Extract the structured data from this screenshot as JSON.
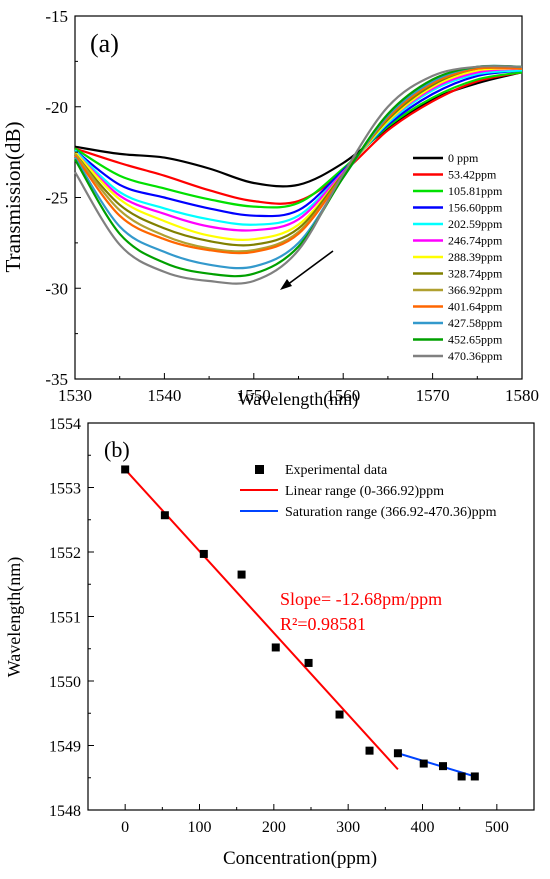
{
  "chart_data": [
    {
      "type": "line",
      "panel_label": "(a)",
      "xlabel": "Wavelength(nm)",
      "ylabel": "Transmission(dB)",
      "xlim": [
        1530,
        1580
      ],
      "ylim": [
        -35,
        -15
      ],
      "xticks": [
        1530,
        1540,
        1550,
        1560,
        1570,
        1580
      ],
      "yticks": [
        -35,
        -30,
        -25,
        -20,
        -15
      ],
      "grid": false,
      "legend_position": "right",
      "annotation": "arrow pointing down-left",
      "series": [
        {
          "name": "0 ppm",
          "color": "#000000",
          "x": [
            1530,
            1535,
            1540,
            1545,
            1550,
            1555,
            1560,
            1565,
            1570,
            1575,
            1580
          ],
          "y": [
            -22.2,
            -22.6,
            -22.8,
            -23.4,
            -24.2,
            -24.3,
            -23.1,
            -21.2,
            -19.6,
            -18.7,
            -18.1
          ]
        },
        {
          "name": "53.42ppm",
          "color": "#ff0000",
          "x": [
            1530,
            1535,
            1540,
            1545,
            1550,
            1555,
            1560,
            1565,
            1570,
            1575,
            1580
          ],
          "y": [
            -22.3,
            -23.1,
            -23.8,
            -24.6,
            -25.2,
            -25.2,
            -23.6,
            -21.3,
            -19.7,
            -18.6,
            -18.1
          ]
        },
        {
          "name": "105.81ppm",
          "color": "#00e000",
          "x": [
            1530,
            1535,
            1540,
            1545,
            1550,
            1555,
            1560,
            1565,
            1570,
            1575,
            1580
          ],
          "y": [
            -22.3,
            -23.8,
            -24.5,
            -25.1,
            -25.5,
            -25.3,
            -23.4,
            -21.1,
            -19.5,
            -18.5,
            -18.1
          ]
        },
        {
          "name": "156.60ppm",
          "color": "#0000ff",
          "x": [
            1530,
            1535,
            1540,
            1545,
            1550,
            1555,
            1560,
            1565,
            1570,
            1575,
            1580
          ],
          "y": [
            -22.4,
            -24.3,
            -25.0,
            -25.6,
            -26.0,
            -25.7,
            -23.5,
            -21.0,
            -19.3,
            -18.3,
            -18.0
          ]
        },
        {
          "name": "202.59ppm",
          "color": "#00ffff",
          "x": [
            1530,
            1535,
            1540,
            1545,
            1550,
            1555,
            1560,
            1565,
            1570,
            1575,
            1580
          ],
          "y": [
            -22.4,
            -24.7,
            -25.6,
            -26.2,
            -26.5,
            -26.0,
            -23.6,
            -20.9,
            -19.1,
            -18.2,
            -18.0
          ]
        },
        {
          "name": "246.74ppm",
          "color": "#ff00ff",
          "x": [
            1530,
            1535,
            1540,
            1545,
            1550,
            1555,
            1560,
            1565,
            1570,
            1575,
            1580
          ],
          "y": [
            -22.5,
            -24.9,
            -25.9,
            -26.6,
            -26.8,
            -26.2,
            -23.6,
            -20.8,
            -19.0,
            -18.1,
            -17.9
          ]
        },
        {
          "name": "288.39ppm",
          "color": "#ffff00",
          "x": [
            1530,
            1535,
            1540,
            1545,
            1550,
            1555,
            1560,
            1565,
            1570,
            1575,
            1580
          ],
          "y": [
            -22.5,
            -25.1,
            -26.3,
            -27.1,
            -27.3,
            -26.5,
            -23.7,
            -20.8,
            -18.9,
            -18.0,
            -17.9
          ]
        },
        {
          "name": "328.74ppm",
          "color": "#808000",
          "x": [
            1530,
            1535,
            1540,
            1545,
            1550,
            1555,
            1560,
            1565,
            1570,
            1575,
            1580
          ],
          "y": [
            -22.6,
            -25.4,
            -26.7,
            -27.4,
            -27.6,
            -26.7,
            -23.7,
            -20.7,
            -18.8,
            -17.9,
            -17.9
          ]
        },
        {
          "name": "366.92ppm",
          "color": "#b0a030",
          "x": [
            1530,
            1535,
            1540,
            1545,
            1550,
            1555,
            1560,
            1565,
            1570,
            1575,
            1580
          ],
          "y": [
            -22.6,
            -25.7,
            -27.1,
            -27.8,
            -27.9,
            -26.9,
            -23.8,
            -20.6,
            -18.7,
            -17.9,
            -17.9
          ]
        },
        {
          "name": "401.64ppm",
          "color": "#ff6600",
          "x": [
            1530,
            1535,
            1540,
            1545,
            1550,
            1555,
            1560,
            1565,
            1570,
            1575,
            1580
          ],
          "y": [
            -22.7,
            -26.0,
            -27.3,
            -27.9,
            -28.0,
            -27.0,
            -23.8,
            -20.6,
            -18.7,
            -17.9,
            -17.9
          ]
        },
        {
          "name": "427.58ppm",
          "color": "#3399cc",
          "x": [
            1530,
            1535,
            1540,
            1545,
            1550,
            1555,
            1560,
            1565,
            1570,
            1575,
            1580
          ],
          "y": [
            -22.8,
            -26.6,
            -28.0,
            -28.7,
            -28.8,
            -27.5,
            -23.9,
            -20.5,
            -18.6,
            -17.8,
            -17.8
          ]
        },
        {
          "name": "452.65ppm",
          "color": "#00a000",
          "x": [
            1530,
            1535,
            1540,
            1545,
            1550,
            1555,
            1560,
            1565,
            1570,
            1575,
            1580
          ],
          "y": [
            -22.9,
            -27.0,
            -28.6,
            -29.2,
            -29.2,
            -27.7,
            -23.9,
            -20.4,
            -18.5,
            -17.8,
            -17.8
          ]
        },
        {
          "name": "470.36ppm",
          "color": "#808080",
          "x": [
            1530,
            1535,
            1540,
            1545,
            1550,
            1555,
            1560,
            1565,
            1570,
            1575,
            1580
          ],
          "y": [
            -23.6,
            -27.6,
            -29.1,
            -29.6,
            -29.6,
            -27.9,
            -23.7,
            -20.0,
            -18.3,
            -17.8,
            -17.8
          ]
        }
      ]
    },
    {
      "type": "scatter",
      "panel_label": "(b)",
      "xlabel": "Concentration(ppm)",
      "ylabel": "Wavelength(nm)",
      "xlim": [
        -50,
        550
      ],
      "ylim": [
        1548,
        1554
      ],
      "xticks": [
        0,
        100,
        200,
        300,
        400,
        500
      ],
      "yticks": [
        1548,
        1549,
        1550,
        1551,
        1552,
        1553,
        1554
      ],
      "grid": false,
      "legend_position": "top-right",
      "annotation": {
        "slope_text": "Slope= -12.68pm/ppm",
        "r2_text": "R²=0.98581",
        "color": "#ff0000"
      },
      "series": [
        {
          "name": "Experimental data",
          "marker": "square",
          "color": "#000000",
          "x": [
            0,
            53.42,
            105.81,
            156.6,
            202.59,
            246.74,
            288.39,
            328.74,
            366.92,
            401.64,
            427.58,
            452.65,
            470.36
          ],
          "y": [
            1553.28,
            1552.57,
            1551.97,
            1551.65,
            1550.52,
            1550.28,
            1549.48,
            1548.92,
            1548.88,
            1548.72,
            1548.68,
            1548.52,
            1548.52
          ]
        },
        {
          "name": "Linear range (0-366.92)ppm",
          "type": "line",
          "color": "#ff0000",
          "x": [
            0,
            366.92
          ],
          "y": [
            1553.28,
            1548.63
          ]
        },
        {
          "name": "Saturation range (366.92-470.36)ppm",
          "type": "line",
          "color": "#0044ff",
          "x": [
            366.92,
            470.36
          ],
          "y": [
            1548.88,
            1548.52
          ]
        }
      ]
    }
  ]
}
